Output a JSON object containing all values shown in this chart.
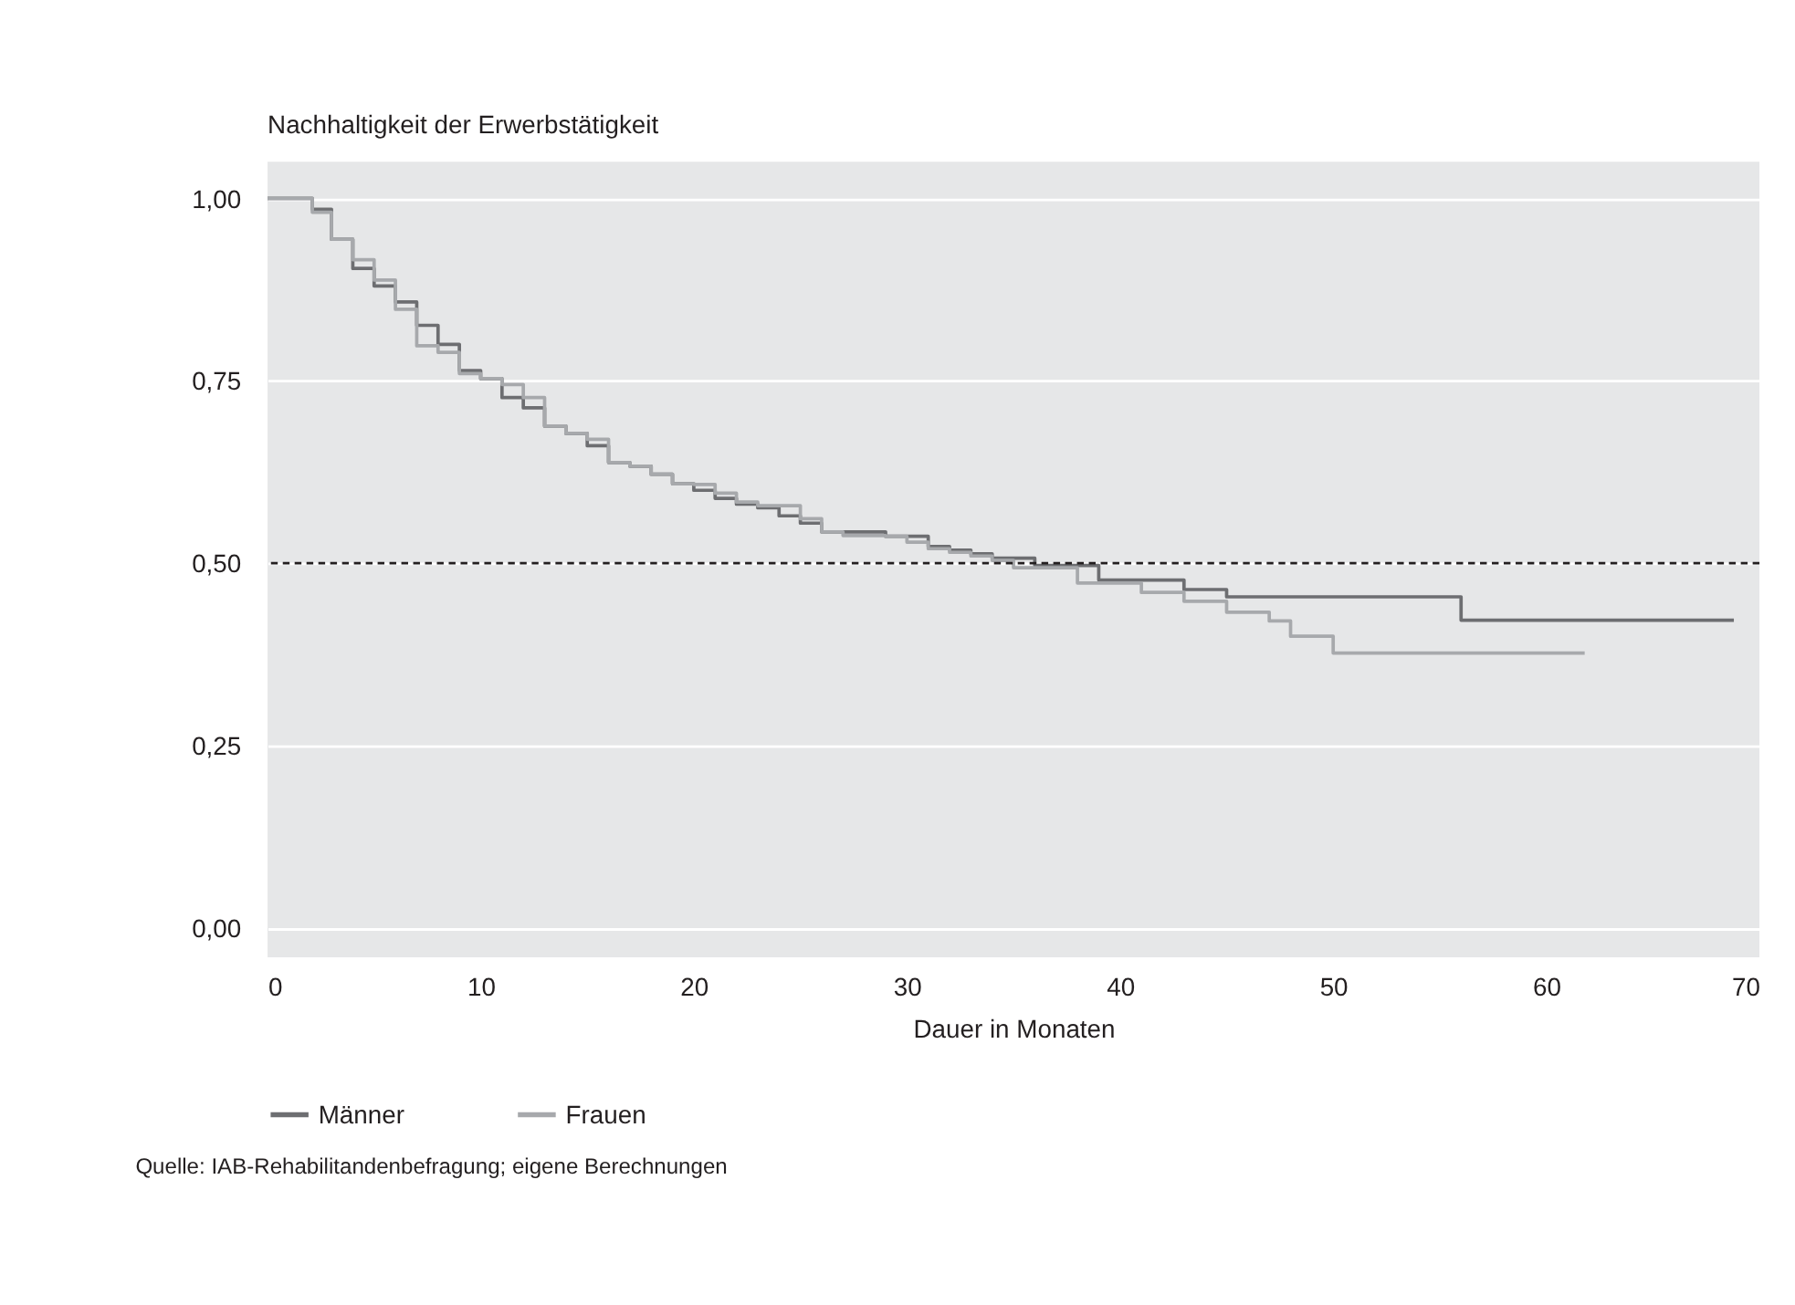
{
  "chart_data": {
    "type": "step",
    "ylabel": "Nachhaltigkeit der Erwerbstätigkeit",
    "xlabel": "Dauer in Monaten",
    "series": [
      {
        "name": "Männer",
        "color": "#6d6e71",
        "x": [
          0,
          2.1,
          3,
          4,
          5,
          6,
          7,
          8,
          9,
          10,
          11,
          12,
          13,
          14,
          15,
          16,
          17,
          18,
          19,
          20,
          21,
          22,
          23,
          24,
          25,
          26,
          29,
          31,
          32,
          33,
          34,
          36,
          39,
          43,
          45,
          56,
          68.8
        ],
        "values": [
          1.0,
          0.985,
          0.944,
          0.904,
          0.88,
          0.858,
          0.826,
          0.8,
          0.764,
          0.753,
          0.727,
          0.713,
          0.688,
          0.678,
          0.661,
          0.638,
          0.633,
          0.622,
          0.609,
          0.6,
          0.589,
          0.581,
          0.576,
          0.565,
          0.555,
          0.543,
          0.537,
          0.523,
          0.518,
          0.513,
          0.507,
          0.497,
          0.477,
          0.464,
          0.454,
          0.422,
          0.422
        ]
      },
      {
        "name": "Frauen",
        "color": "#a7a9ac",
        "x": [
          0,
          2.1,
          3,
          4,
          5,
          6,
          7,
          8,
          9,
          10,
          11,
          12,
          13,
          14,
          15,
          16,
          17,
          18,
          19,
          20,
          21,
          22,
          23,
          25,
          26,
          27,
          29,
          30,
          31,
          32,
          33,
          34,
          35,
          38,
          41,
          43,
          45,
          47,
          48,
          50,
          61.8
        ],
        "values": [
          1.0,
          0.981,
          0.944,
          0.916,
          0.888,
          0.848,
          0.798,
          0.789,
          0.76,
          0.753,
          0.745,
          0.727,
          0.688,
          0.678,
          0.67,
          0.638,
          0.633,
          0.622,
          0.609,
          0.608,
          0.596,
          0.584,
          0.579,
          0.561,
          0.543,
          0.538,
          0.537,
          0.529,
          0.52,
          0.515,
          0.51,
          0.504,
          0.494,
          0.473,
          0.46,
          0.448,
          0.433,
          0.421,
          0.4,
          0.377,
          0.377
        ]
      }
    ],
    "xlim": [
      0,
      70
    ],
    "xticks": [
      0,
      10,
      20,
      30,
      40,
      50,
      60,
      70
    ],
    "ylim": [
      -0.04,
      1.05
    ],
    "yticks": [
      {
        "value": 0,
        "label": "0,00"
      },
      {
        "value": 0.25,
        "label": "0,25"
      },
      {
        "value": 0.5,
        "label": "0,50"
      },
      {
        "value": 0.75,
        "label": "0,75"
      },
      {
        "value": 1,
        "label": "1,00"
      }
    ],
    "ref_lines": [
      {
        "axis": "y",
        "value": 0.5,
        "color": "#231f20",
        "line_style": "dashed"
      }
    ],
    "grid": "y",
    "legend": "bottom",
    "marker": "none",
    "line_style": "solid",
    "annotations": [
      "Quelle: IAB-Rehabilitandenbefragung; eigene Berechnungen"
    ]
  }
}
